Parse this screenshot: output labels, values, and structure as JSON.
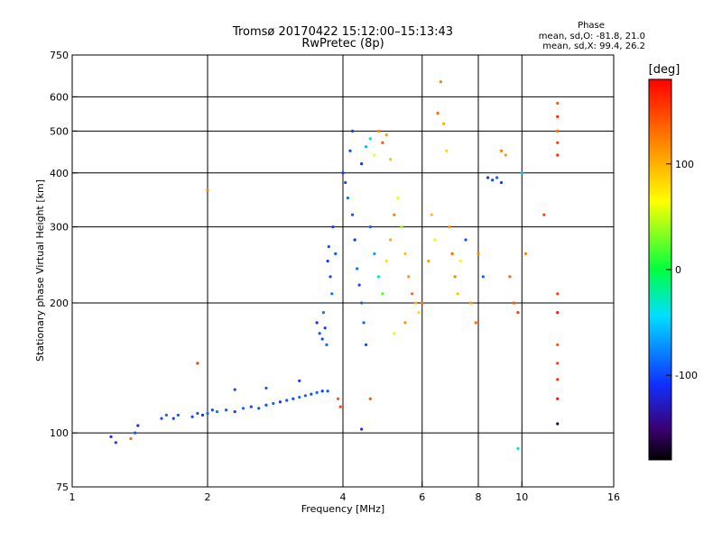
{
  "chart_data": {
    "type": "scatter",
    "title": "Tromsø 20170422 15:12:00–15:13:43",
    "subtitle": "RwPretec (8p)",
    "xlabel": "Frequency [MHz]",
    "ylabel": "Stationary phase Virtual Height [km]",
    "x_scale": "log",
    "y_scale": "log",
    "xlim": [
      1,
      16
    ],
    "ylim": [
      75,
      750
    ],
    "x_ticks": [
      1,
      2,
      4,
      6,
      8,
      10,
      16
    ],
    "x_tick_labels": [
      "1",
      "2",
      "4",
      "6",
      "8",
      "10",
      "16"
    ],
    "y_ticks": [
      75,
      100,
      200,
      300,
      400,
      500,
      600,
      750
    ],
    "y_tick_labels": [
      "75",
      "100",
      "200",
      "300",
      "400",
      "500",
      "600",
      "750"
    ],
    "grid": true,
    "phase_legend": {
      "heading": "Phase",
      "line1": "mean, sd,O: -81.8, 21.0",
      "line2": "mean, sd,X:  99.4, 26.2"
    },
    "colorbar": {
      "label": "[deg]",
      "range": [
        -180,
        180
      ],
      "ticks": [
        100,
        0,
        -100
      ],
      "tick_labels": [
        "100",
        "0",
        "-100"
      ]
    },
    "series": [
      {
        "values": [
          {
            "x": 1.22,
            "y": 98,
            "phase": -110
          },
          {
            "x": 1.25,
            "y": 95,
            "phase": -105
          },
          {
            "x": 1.35,
            "y": 97,
            "phase": 130
          },
          {
            "x": 1.38,
            "y": 100,
            "phase": -95
          },
          {
            "x": 1.4,
            "y": 104,
            "phase": -115
          },
          {
            "x": 1.58,
            "y": 108,
            "phase": -100
          },
          {
            "x": 1.62,
            "y": 110,
            "phase": -90
          },
          {
            "x": 1.68,
            "y": 108,
            "phase": -105
          },
          {
            "x": 1.72,
            "y": 110,
            "phase": -95
          },
          {
            "x": 1.85,
            "y": 109,
            "phase": -100
          },
          {
            "x": 1.9,
            "y": 111,
            "phase": -95
          },
          {
            "x": 1.95,
            "y": 110,
            "phase": -110
          },
          {
            "x": 2.0,
            "y": 111,
            "phase": -90
          },
          {
            "x": 2.05,
            "y": 113,
            "phase": -100
          },
          {
            "x": 2.1,
            "y": 112,
            "phase": -85
          },
          {
            "x": 2.2,
            "y": 113,
            "phase": -95
          },
          {
            "x": 2.3,
            "y": 112,
            "phase": -105
          },
          {
            "x": 2.4,
            "y": 114,
            "phase": -90
          },
          {
            "x": 2.5,
            "y": 115,
            "phase": -100
          },
          {
            "x": 2.6,
            "y": 114,
            "phase": -95
          },
          {
            "x": 2.7,
            "y": 116,
            "phase": -100
          },
          {
            "x": 2.8,
            "y": 117,
            "phase": -90
          },
          {
            "x": 2.9,
            "y": 118,
            "phase": -105
          },
          {
            "x": 3.0,
            "y": 119,
            "phase": -95
          },
          {
            "x": 3.1,
            "y": 120,
            "phase": -100
          },
          {
            "x": 3.2,
            "y": 121,
            "phase": -85
          },
          {
            "x": 3.3,
            "y": 122,
            "phase": -95
          },
          {
            "x": 3.4,
            "y": 123,
            "phase": -100
          },
          {
            "x": 3.5,
            "y": 124,
            "phase": -90
          },
          {
            "x": 3.6,
            "y": 125,
            "phase": -105
          },
          {
            "x": 3.7,
            "y": 125,
            "phase": -95
          },
          {
            "x": 1.9,
            "y": 145,
            "phase": 150
          },
          {
            "x": 2.0,
            "y": 365,
            "phase": 120
          },
          {
            "x": 2.3,
            "y": 126,
            "phase": -100
          },
          {
            "x": 2.7,
            "y": 127,
            "phase": -95
          },
          {
            "x": 3.2,
            "y": 132,
            "phase": -105
          },
          {
            "x": 3.5,
            "y": 180,
            "phase": -110
          },
          {
            "x": 3.55,
            "y": 170,
            "phase": -95
          },
          {
            "x": 3.6,
            "y": 165,
            "phase": -100
          },
          {
            "x": 3.62,
            "y": 190,
            "phase": -85
          },
          {
            "x": 3.65,
            "y": 175,
            "phase": -105
          },
          {
            "x": 3.68,
            "y": 160,
            "phase": -90
          },
          {
            "x": 3.7,
            "y": 250,
            "phase": -110
          },
          {
            "x": 3.72,
            "y": 270,
            "phase": -95
          },
          {
            "x": 3.75,
            "y": 230,
            "phase": -100
          },
          {
            "x": 3.78,
            "y": 210,
            "phase": -85
          },
          {
            "x": 3.8,
            "y": 300,
            "phase": -105
          },
          {
            "x": 3.85,
            "y": 260,
            "phase": -95
          },
          {
            "x": 3.9,
            "y": 120,
            "phase": 140
          },
          {
            "x": 3.95,
            "y": 115,
            "phase": 150
          },
          {
            "x": 4.0,
            "y": 400,
            "phase": -110
          },
          {
            "x": 4.05,
            "y": 380,
            "phase": -100
          },
          {
            "x": 4.1,
            "y": 350,
            "phase": -90
          },
          {
            "x": 4.15,
            "y": 450,
            "phase": -100
          },
          {
            "x": 4.2,
            "y": 500,
            "phase": -105
          },
          {
            "x": 4.2,
            "y": 320,
            "phase": -95
          },
          {
            "x": 4.25,
            "y": 280,
            "phase": -110
          },
          {
            "x": 4.3,
            "y": 240,
            "phase": -85
          },
          {
            "x": 4.35,
            "y": 220,
            "phase": -100
          },
          {
            "x": 4.4,
            "y": 200,
            "phase": -95
          },
          {
            "x": 4.45,
            "y": 180,
            "phase": -90
          },
          {
            "x": 4.5,
            "y": 160,
            "phase": -100
          },
          {
            "x": 4.4,
            "y": 420,
            "phase": -110
          },
          {
            "x": 4.5,
            "y": 460,
            "phase": -60
          },
          {
            "x": 4.6,
            "y": 480,
            "phase": -30
          },
          {
            "x": 4.7,
            "y": 440,
            "phase": 60
          },
          {
            "x": 4.8,
            "y": 500,
            "phase": 120
          },
          {
            "x": 4.9,
            "y": 470,
            "phase": 140
          },
          {
            "x": 5.0,
            "y": 490,
            "phase": 110
          },
          {
            "x": 5.1,
            "y": 430,
            "phase": 90
          },
          {
            "x": 4.6,
            "y": 300,
            "phase": -90
          },
          {
            "x": 4.7,
            "y": 260,
            "phase": -70
          },
          {
            "x": 4.8,
            "y": 230,
            "phase": -40
          },
          {
            "x": 4.9,
            "y": 210,
            "phase": 20
          },
          {
            "x": 5.0,
            "y": 250,
            "phase": 80
          },
          {
            "x": 5.1,
            "y": 280,
            "phase": 100
          },
          {
            "x": 5.2,
            "y": 320,
            "phase": 120
          },
          {
            "x": 5.3,
            "y": 350,
            "phase": 60
          },
          {
            "x": 5.4,
            "y": 300,
            "phase": 40
          },
          {
            "x": 5.5,
            "y": 260,
            "phase": 90
          },
          {
            "x": 5.6,
            "y": 230,
            "phase": 110
          },
          {
            "x": 5.7,
            "y": 210,
            "phase": 130
          },
          {
            "x": 5.8,
            "y": 200,
            "phase": 100
          },
          {
            "x": 5.9,
            "y": 190,
            "phase": 80
          },
          {
            "x": 4.6,
            "y": 120,
            "phase": 140
          },
          {
            "x": 4.4,
            "y": 102,
            "phase": -110
          },
          {
            "x": 5.2,
            "y": 170,
            "phase": 60
          },
          {
            "x": 5.5,
            "y": 180,
            "phase": 110
          },
          {
            "x": 6.0,
            "y": 200,
            "phase": 130
          },
          {
            "x": 6.2,
            "y": 250,
            "phase": 110
          },
          {
            "x": 6.3,
            "y": 320,
            "phase": 90
          },
          {
            "x": 6.4,
            "y": 280,
            "phase": 60
          },
          {
            "x": 6.5,
            "y": 550,
            "phase": 130
          },
          {
            "x": 6.6,
            "y": 650,
            "phase": 120
          },
          {
            "x": 6.7,
            "y": 520,
            "phase": 100
          },
          {
            "x": 6.8,
            "y": 450,
            "phase": 80
          },
          {
            "x": 6.9,
            "y": 300,
            "phase": 110
          },
          {
            "x": 7.0,
            "y": 260,
            "phase": 130
          },
          {
            "x": 7.1,
            "y": 230,
            "phase": 120
          },
          {
            "x": 7.2,
            "y": 210,
            "phase": 90
          },
          {
            "x": 7.3,
            "y": 250,
            "phase": 60
          },
          {
            "x": 7.5,
            "y": 280,
            "phase": -100
          },
          {
            "x": 7.7,
            "y": 200,
            "phase": 110
          },
          {
            "x": 7.9,
            "y": 180,
            "phase": 130
          },
          {
            "x": 8.0,
            "y": 260,
            "phase": 120
          },
          {
            "x": 8.2,
            "y": 230,
            "phase": -90
          },
          {
            "x": 8.4,
            "y": 390,
            "phase": -110
          },
          {
            "x": 8.6,
            "y": 385,
            "phase": -100
          },
          {
            "x": 8.8,
            "y": 390,
            "phase": -95
          },
          {
            "x": 9.0,
            "y": 380,
            "phase": -105
          },
          {
            "x": 9.0,
            "y": 450,
            "phase": 120
          },
          {
            "x": 9.2,
            "y": 440,
            "phase": 110
          },
          {
            "x": 9.4,
            "y": 230,
            "phase": 130
          },
          {
            "x": 9.6,
            "y": 200,
            "phase": 140
          },
          {
            "x": 9.8,
            "y": 190,
            "phase": 150
          },
          {
            "x": 10.0,
            "y": 400,
            "phase": -60
          },
          {
            "x": 10.2,
            "y": 260,
            "phase": 120
          },
          {
            "x": 9.8,
            "y": 92,
            "phase": -30
          },
          {
            "x": 11.2,
            "y": 320,
            "phase": 150
          },
          {
            "x": 12.0,
            "y": 580,
            "phase": 140
          },
          {
            "x": 12.0,
            "y": 540,
            "phase": 160
          },
          {
            "x": 12.0,
            "y": 500,
            "phase": 130
          },
          {
            "x": 12.0,
            "y": 470,
            "phase": 150
          },
          {
            "x": 12.0,
            "y": 440,
            "phase": 160
          },
          {
            "x": 12.0,
            "y": 210,
            "phase": 150
          },
          {
            "x": 12.0,
            "y": 190,
            "phase": 170
          },
          {
            "x": 12.0,
            "y": 160,
            "phase": 140
          },
          {
            "x": 12.0,
            "y": 145,
            "phase": 150
          },
          {
            "x": 12.0,
            "y": 133,
            "phase": 160
          },
          {
            "x": 12.0,
            "y": 120,
            "phase": 170
          },
          {
            "x": 12.0,
            "y": 105,
            "phase": -160
          }
        ]
      }
    ]
  }
}
